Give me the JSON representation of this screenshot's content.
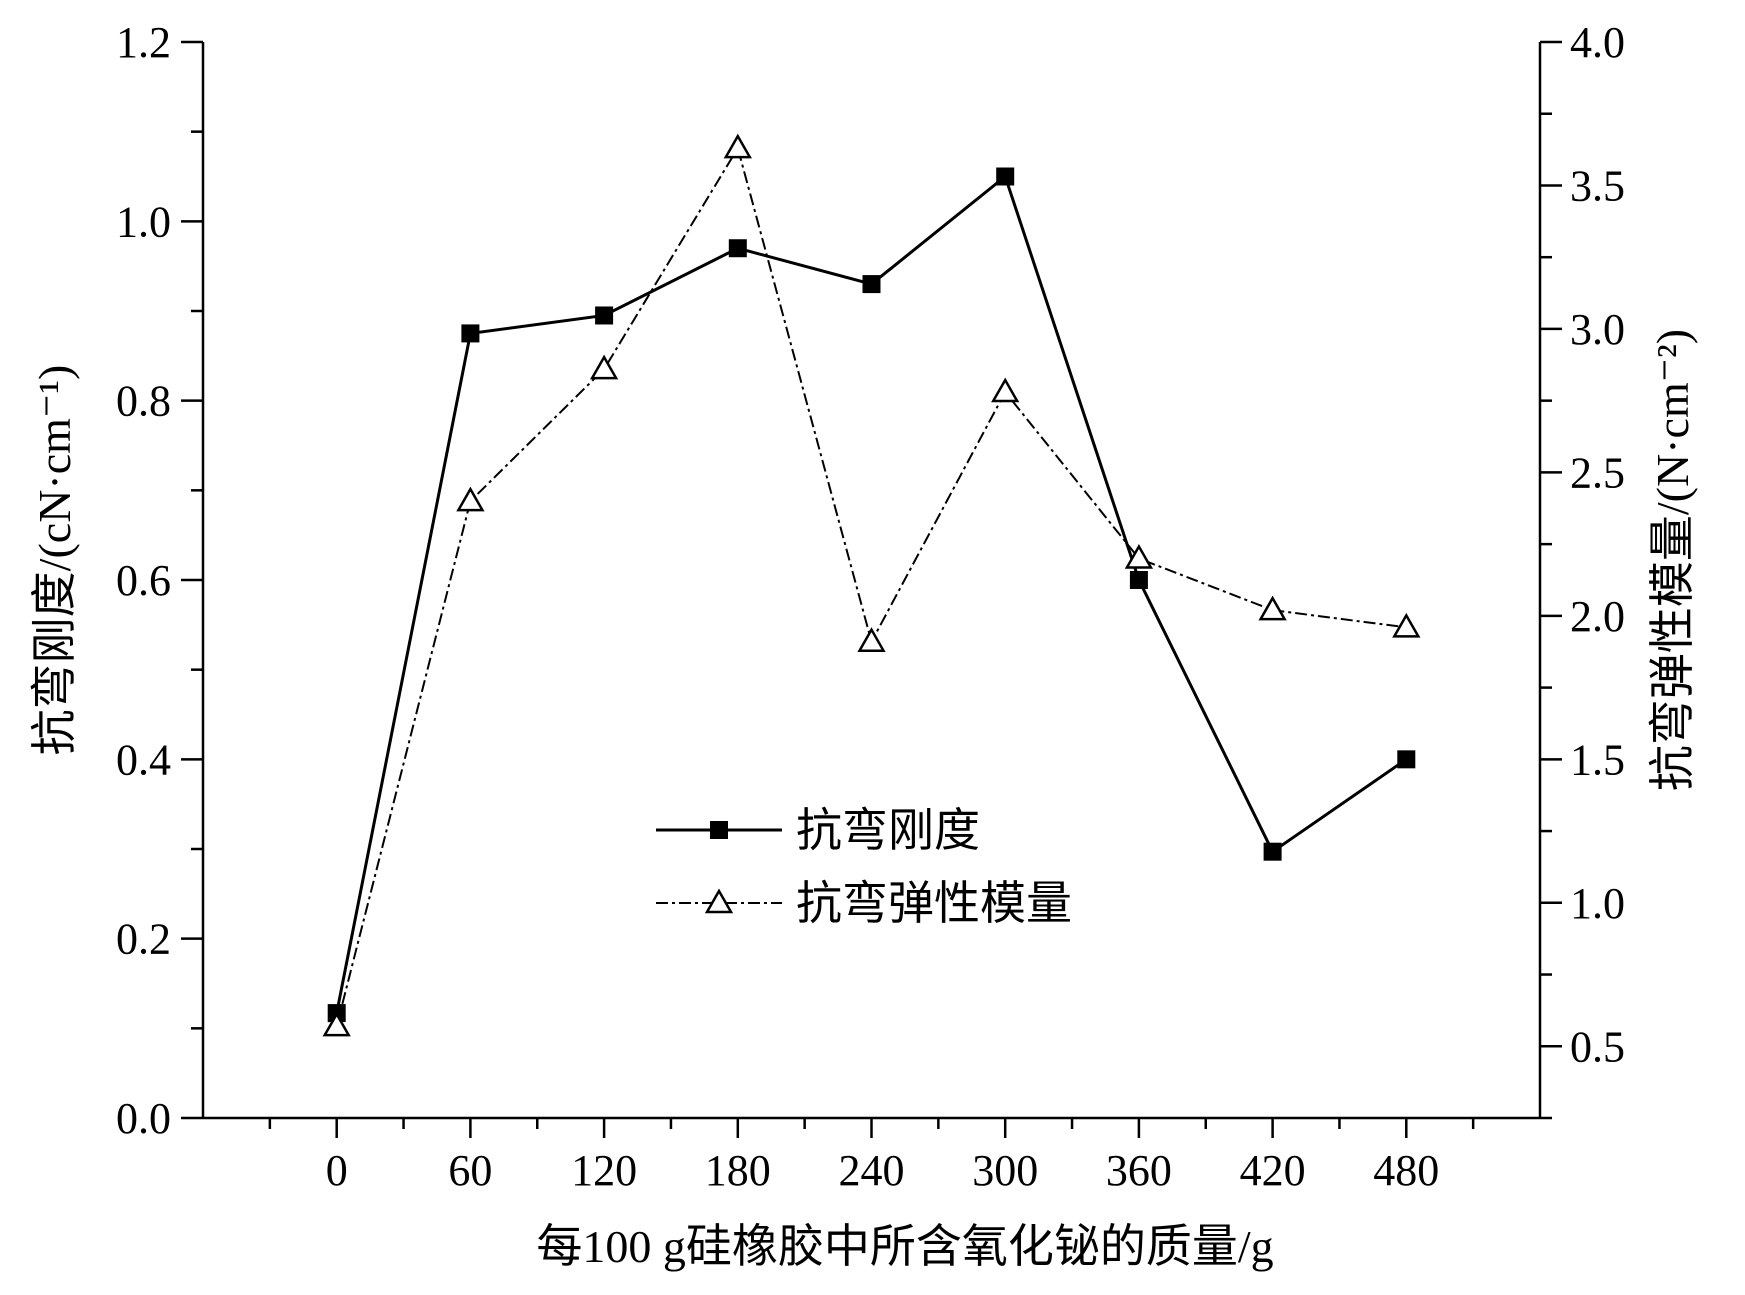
{
  "chart_data": {
    "type": "line",
    "xlabel": "每100 g硅橡胶中所含氧化铋的质量/g",
    "ylabel_left": "抗弯刚度/(cN·cm⁻¹)",
    "ylabel_right": "抗弯弹性模量/(N·cm⁻²)",
    "x": [
      0,
      60,
      120,
      180,
      240,
      300,
      360,
      420,
      480
    ],
    "x_tick_labels": [
      "0",
      "60",
      "120",
      "180",
      "240",
      "300",
      "360",
      "420",
      "480"
    ],
    "xlim": [
      -60,
      540
    ],
    "ylim_left": [
      0.0,
      1.2
    ],
    "ylim_right": [
      0.25,
      4.0
    ],
    "y_left_tick_labels": [
      "0.0",
      "0.2",
      "0.4",
      "0.6",
      "0.8",
      "1.0",
      "1.2"
    ],
    "y_right_tick_labels": [
      "0.5",
      "1.0",
      "1.5",
      "2.0",
      "2.5",
      "3.0",
      "3.5",
      "4.0"
    ],
    "grid": false,
    "legend_position": "center",
    "series": [
      {
        "name": "抗弯刚度",
        "axis": "left",
        "marker": "filled-square",
        "line_style": "solid",
        "color": "#000000",
        "values": [
          0.117,
          0.875,
          0.895,
          0.97,
          0.93,
          1.05,
          0.6,
          0.297,
          0.4
        ]
      },
      {
        "name": "抗弯弹性模量",
        "axis": "right",
        "marker": "open-triangle",
        "line_style": "dash-dot",
        "color": "#000000",
        "values": [
          0.57,
          2.4,
          2.86,
          3.63,
          1.91,
          2.78,
          2.2,
          2.02,
          1.96
        ]
      }
    ]
  }
}
